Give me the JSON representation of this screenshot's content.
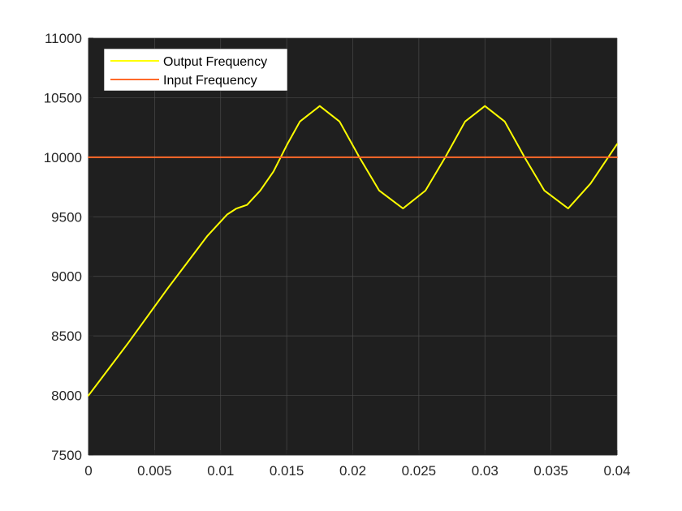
{
  "chart_data": {
    "type": "line",
    "title": "",
    "xlabel": "",
    "ylabel": "",
    "xlim": [
      0,
      0.04
    ],
    "ylim": [
      7500,
      11000
    ],
    "x_ticks": [
      "0",
      "0.005",
      "0.01",
      "0.015",
      "0.02",
      "0.025",
      "0.03",
      "0.035",
      "0.04"
    ],
    "y_ticks": [
      "7500",
      "8000",
      "8500",
      "9000",
      "9500",
      "10000",
      "10500",
      "11000"
    ],
    "grid": true,
    "legend_position": "top-left",
    "plot_background": "#1f1f1f",
    "series": [
      {
        "name": "Output Frequency",
        "color": "#ffff00",
        "x": [
          0,
          0.0015,
          0.003,
          0.0045,
          0.006,
          0.0075,
          0.009,
          0.0105,
          0.0112,
          0.012,
          0.013,
          0.014,
          0.015,
          0.016,
          0.0175,
          0.019,
          0.0205,
          0.022,
          0.0238,
          0.0255,
          0.027,
          0.0285,
          0.03,
          0.0315,
          0.033,
          0.0345,
          0.0363,
          0.038,
          0.04
        ],
        "y": [
          8000,
          8220,
          8440,
          8670,
          8900,
          9120,
          9340,
          9520,
          9570,
          9600,
          9720,
          9880,
          10100,
          10300,
          10430,
          10300,
          10000,
          9720,
          9570,
          9720,
          10000,
          10300,
          10430,
          10300,
          10000,
          9720,
          9570,
          9780,
          10110
        ]
      },
      {
        "name": "Input Frequency",
        "color": "#ff6a2a",
        "x": [
          0,
          0.04
        ],
        "y": [
          10000,
          10000
        ]
      }
    ]
  }
}
